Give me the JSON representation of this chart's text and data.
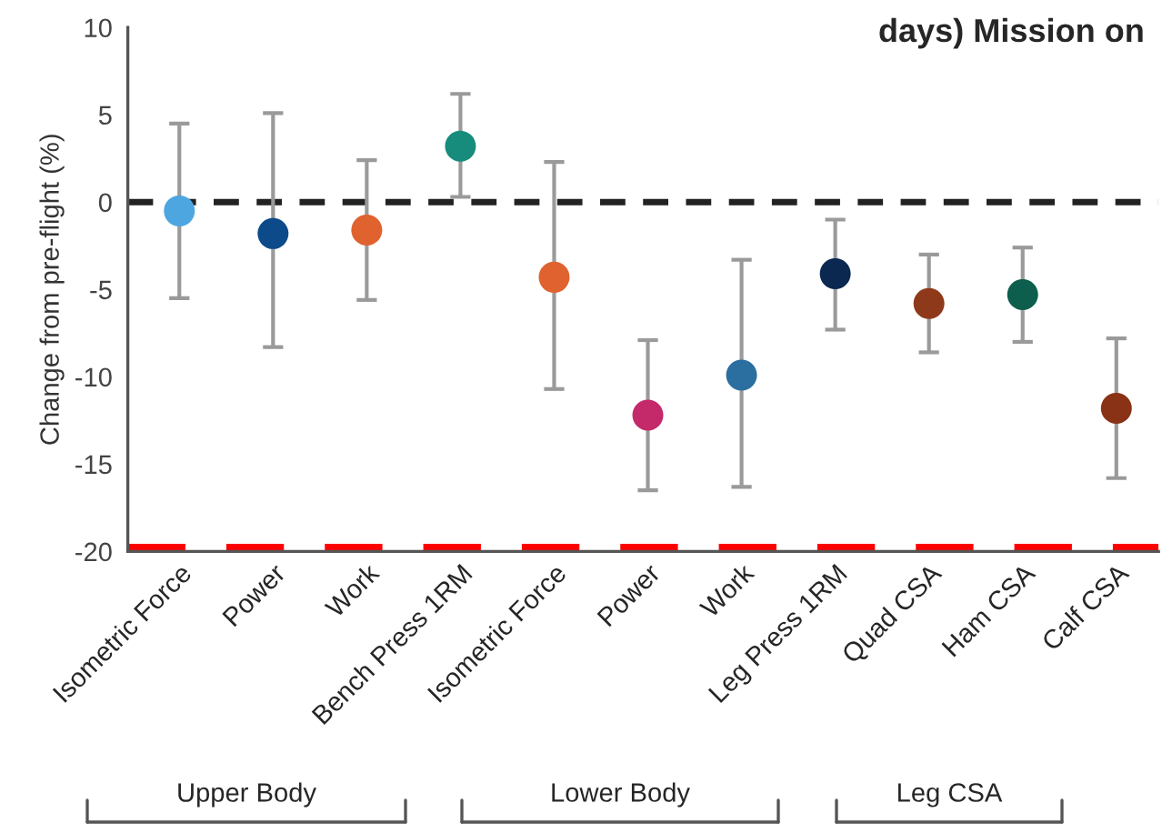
{
  "chart_data": {
    "type": "scatter",
    "title": "days) Mission on",
    "ylabel": "Change from pre-flight (%)",
    "categories": [
      "Isometric Force",
      "Power",
      "Work",
      "Bench Press 1RM",
      "Isometric Force",
      "Power",
      "Work",
      "Leg Press 1RM",
      "Quad CSA",
      "Ham CSA",
      "Calf CSA"
    ],
    "values": [
      -0.5,
      -1.8,
      -1.6,
      3.2,
      -4.3,
      -12.2,
      -9.9,
      -4.1,
      -5.8,
      -5.3,
      -11.8
    ],
    "errors": [
      [
        -5.5,
        4.5
      ],
      [
        -8.3,
        5.1
      ],
      [
        -5.6,
        2.4
      ],
      [
        0.3,
        6.2
      ],
      [
        -10.7,
        2.3
      ],
      [
        -16.5,
        -7.9
      ],
      [
        -16.3,
        -3.3
      ],
      [
        -7.3,
        -1.0
      ],
      [
        -8.6,
        -3.0
      ],
      [
        -8.0,
        -2.6
      ],
      [
        -15.8,
        -7.8
      ]
    ],
    "colors": [
      "#4ea6e0",
      "#0d4a8a",
      "#e0622e",
      "#178c7c",
      "#e0622e",
      "#c42a6a",
      "#2a6fa0",
      "#0b2850",
      "#8e3a1a",
      "#0d5e4c",
      "#8a3215"
    ],
    "marker": "circle",
    "ylim": [
      -20,
      10
    ],
    "yticks": [
      -20,
      -15,
      -10,
      -5,
      0,
      5,
      10
    ],
    "ref_lines": [
      {
        "axis": "y",
        "value": 0,
        "color": "#222222",
        "line_style": "dashed"
      },
      {
        "axis": "y",
        "value": -20,
        "color": "#ff0000",
        "line_style": "dashed"
      }
    ],
    "annotations": [
      "Upper Body",
      "Lower Body",
      "Leg CSA"
    ]
  }
}
